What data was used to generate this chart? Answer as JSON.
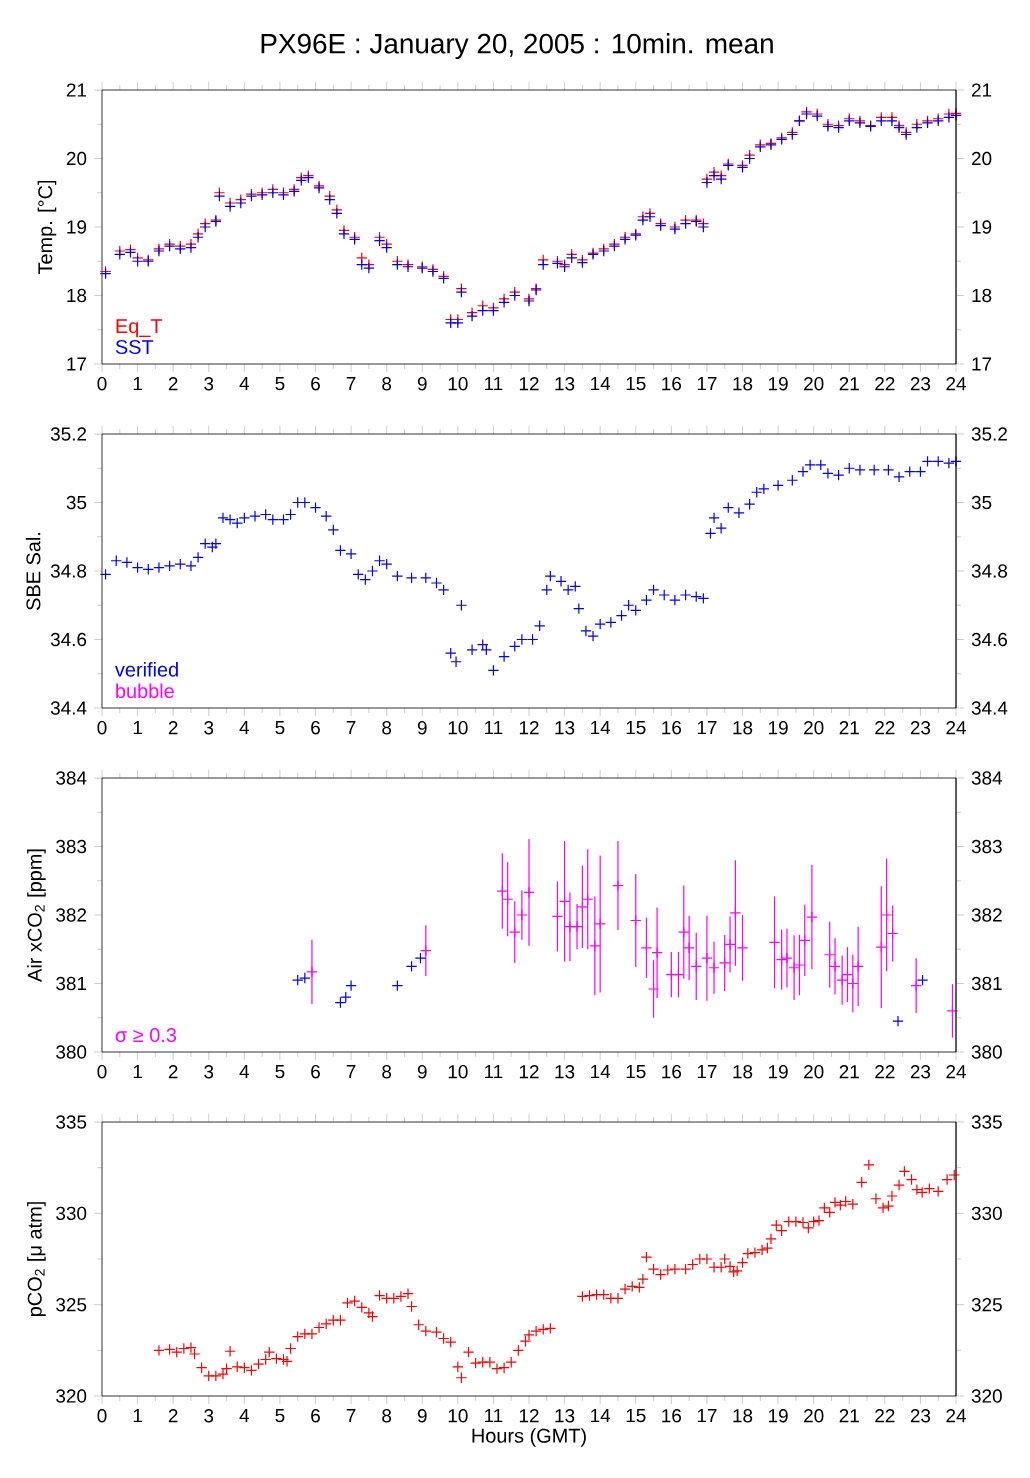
{
  "chart_data": [
    {
      "type": "scatter",
      "title": "PX96E : January 20, 2005 : 10min. mean",
      "ylabel": "Temp. [°C]",
      "marker": "cross",
      "legend": "bottom left",
      "xlim": [
        0,
        24
      ],
      "xticks": [
        0,
        1,
        2,
        3,
        4,
        5,
        6,
        7,
        8,
        9,
        10,
        11,
        12,
        13,
        14,
        15,
        16,
        17,
        18,
        19,
        20,
        21,
        22,
        23,
        24
      ],
      "ylim": [
        17,
        21
      ],
      "yticks": [
        17,
        18,
        19,
        20,
        21
      ],
      "y2lim": [
        17,
        21
      ],
      "y2ticks": [
        17,
        18,
        19,
        20,
        21
      ],
      "series": [
        {
          "name": "Eq_T",
          "color": "#ff0000",
          "x": [
            0.1,
            0.5,
            0.8,
            1.0,
            1.3,
            1.6,
            1.9,
            2.2,
            2.5,
            2.7,
            2.9,
            3.2,
            3.3,
            3.6,
            3.9,
            4.2,
            4.5,
            4.8,
            5.1,
            5.4,
            5.6,
            5.8,
            6.1,
            6.4,
            6.6,
            6.8,
            7.1,
            7.3,
            7.5,
            7.8,
            8.0,
            8.3,
            8.6,
            9.0,
            9.3,
            9.6,
            9.8,
            10.0,
            10.1,
            10.4,
            10.7,
            11.0,
            11.3,
            11.6,
            12.0,
            12.2,
            12.4,
            12.8,
            13.0,
            13.2,
            13.5,
            13.8,
            14.1,
            14.4,
            14.7,
            15.0,
            15.2,
            15.4,
            15.7,
            16.1,
            16.4,
            16.7,
            16.9,
            17.0,
            17.2,
            17.4,
            17.6,
            18.0,
            18.2,
            18.5,
            18.8,
            19.1,
            19.4,
            19.6,
            19.8,
            20.1,
            20.4,
            20.7,
            21.0,
            21.3,
            21.6,
            21.9,
            22.2,
            22.4,
            22.6,
            22.9,
            23.2,
            23.5,
            23.8,
            24.0
          ],
          "values": [
            18.35,
            18.65,
            18.67,
            18.55,
            18.52,
            18.68,
            18.75,
            18.72,
            18.75,
            18.9,
            19.05,
            19.1,
            19.5,
            19.35,
            19.4,
            19.48,
            19.5,
            19.55,
            19.5,
            19.55,
            19.72,
            19.75,
            19.6,
            19.45,
            19.25,
            18.95,
            18.85,
            18.55,
            18.45,
            18.85,
            18.75,
            18.5,
            18.45,
            18.42,
            18.38,
            18.28,
            17.65,
            17.65,
            18.1,
            17.75,
            17.85,
            17.82,
            17.95,
            18.05,
            17.95,
            18.1,
            18.52,
            18.5,
            18.45,
            18.6,
            18.52,
            18.62,
            18.68,
            18.75,
            18.85,
            18.9,
            19.15,
            19.2,
            19.05,
            19.0,
            19.1,
            19.1,
            19.05,
            19.7,
            19.8,
            19.75,
            19.92,
            19.9,
            20.05,
            20.2,
            20.22,
            20.3,
            20.38,
            20.55,
            20.68,
            20.65,
            20.5,
            20.48,
            20.58,
            20.55,
            20.48,
            20.6,
            20.6,
            20.48,
            20.38,
            20.5,
            20.55,
            20.58,
            20.65,
            20.66
          ]
        },
        {
          "name": "SST",
          "color": "#0000ff",
          "x": [
            0.1,
            0.5,
            0.8,
            1.0,
            1.3,
            1.6,
            1.9,
            2.2,
            2.5,
            2.7,
            2.9,
            3.2,
            3.3,
            3.6,
            3.9,
            4.2,
            4.5,
            4.8,
            5.1,
            5.4,
            5.6,
            5.8,
            6.1,
            6.4,
            6.6,
            6.8,
            7.1,
            7.3,
            7.5,
            7.8,
            8.0,
            8.3,
            8.6,
            9.0,
            9.3,
            9.6,
            9.8,
            10.0,
            10.1,
            10.4,
            10.7,
            11.0,
            11.3,
            11.6,
            12.0,
            12.2,
            12.4,
            12.8,
            13.0,
            13.2,
            13.5,
            13.8,
            14.1,
            14.4,
            14.7,
            15.0,
            15.2,
            15.4,
            15.7,
            16.1,
            16.4,
            16.7,
            16.9,
            17.0,
            17.2,
            17.4,
            17.6,
            18.0,
            18.2,
            18.5,
            18.8,
            19.1,
            19.4,
            19.6,
            19.8,
            20.1,
            20.4,
            20.7,
            21.0,
            21.3,
            21.6,
            21.9,
            22.2,
            22.4,
            22.6,
            22.9,
            23.2,
            23.5,
            23.8,
            24.0
          ],
          "values": [
            18.32,
            18.6,
            18.63,
            18.5,
            18.5,
            18.65,
            18.72,
            18.68,
            18.7,
            18.85,
            19.0,
            19.08,
            19.45,
            19.3,
            19.35,
            19.45,
            19.47,
            19.5,
            19.47,
            19.52,
            19.68,
            19.72,
            19.57,
            19.4,
            19.2,
            18.9,
            18.82,
            18.45,
            18.4,
            18.8,
            18.7,
            18.45,
            18.42,
            18.4,
            18.35,
            18.25,
            17.6,
            17.6,
            18.05,
            17.7,
            17.78,
            17.78,
            17.9,
            18.0,
            17.92,
            18.08,
            18.45,
            18.47,
            18.42,
            18.55,
            18.48,
            18.6,
            18.65,
            18.72,
            18.82,
            18.88,
            19.1,
            19.15,
            19.02,
            18.97,
            19.05,
            19.08,
            19.0,
            19.65,
            19.75,
            19.7,
            19.9,
            19.87,
            20.0,
            20.17,
            20.2,
            20.28,
            20.35,
            20.55,
            20.65,
            20.62,
            20.47,
            20.45,
            20.55,
            20.52,
            20.47,
            20.55,
            20.55,
            20.45,
            20.35,
            20.45,
            20.52,
            20.55,
            20.6,
            20.63
          ]
        }
      ]
    },
    {
      "type": "scatter",
      "ylabel": "SBE Sal.",
      "marker": "cross",
      "legend": "bottom left",
      "xlim": [
        0,
        24
      ],
      "xticks": [
        0,
        1,
        2,
        3,
        4,
        5,
        6,
        7,
        8,
        9,
        10,
        11,
        12,
        13,
        14,
        15,
        16,
        17,
        18,
        19,
        20,
        21,
        22,
        23,
        24
      ],
      "ylim": [
        34.4,
        35.2
      ],
      "yticks": [
        34.4,
        34.6,
        34.8,
        35,
        35.2
      ],
      "y2lim": [
        34.4,
        35.2
      ],
      "y2ticks": [
        34.4,
        34.6,
        34.8,
        35,
        35.2
      ],
      "series": [
        {
          "name": "verified",
          "color": "#0000ff",
          "x": [
            0.1,
            0.4,
            0.7,
            1.0,
            1.3,
            1.6,
            1.9,
            2.2,
            2.5,
            2.7,
            2.9,
            3.1,
            3.2,
            3.4,
            3.6,
            3.8,
            4.0,
            4.3,
            4.6,
            4.8,
            5.1,
            5.3,
            5.5,
            5.7,
            6.0,
            6.3,
            6.5,
            6.7,
            7.0,
            7.2,
            7.4,
            7.6,
            7.8,
            8.0,
            8.3,
            8.7,
            9.1,
            9.4,
            9.6,
            9.8,
            9.95,
            10.1,
            10.4,
            10.7,
            10.8,
            11.0,
            11.3,
            11.6,
            11.8,
            12.1,
            12.3,
            12.5,
            12.6,
            12.9,
            13.1,
            13.3,
            13.4,
            13.6,
            13.8,
            14.0,
            14.3,
            14.6,
            14.8,
            15.0,
            15.3,
            15.5,
            15.8,
            16.1,
            16.4,
            16.7,
            16.9,
            17.1,
            17.2,
            17.4,
            17.6,
            17.9,
            18.2,
            18.4,
            18.6,
            19.0,
            19.4,
            19.7,
            19.9,
            20.2,
            20.4,
            20.7,
            21.0,
            21.3,
            21.7,
            22.1,
            22.4,
            22.7,
            23.0,
            23.2,
            23.5,
            23.8,
            24.0
          ],
          "values": [
            34.79,
            34.83,
            34.825,
            34.81,
            34.805,
            34.81,
            34.815,
            34.82,
            34.815,
            34.84,
            34.88,
            34.87,
            34.88,
            34.955,
            34.95,
            34.94,
            34.955,
            34.96,
            34.965,
            34.95,
            34.95,
            34.965,
            35.0,
            35.0,
            34.985,
            34.96,
            34.92,
            34.86,
            34.85,
            34.79,
            34.775,
            34.8,
            34.83,
            34.82,
            34.785,
            34.78,
            34.78,
            34.765,
            34.745,
            34.56,
            34.535,
            34.7,
            34.57,
            34.585,
            34.57,
            34.51,
            34.55,
            34.58,
            34.6,
            34.6,
            34.64,
            34.745,
            34.785,
            34.77,
            34.745,
            34.755,
            34.69,
            34.625,
            34.61,
            34.645,
            34.65,
            34.67,
            34.7,
            34.685,
            34.715,
            34.745,
            34.73,
            34.715,
            34.73,
            34.725,
            34.72,
            34.91,
            34.955,
            34.925,
            34.985,
            34.97,
            34.995,
            35.03,
            35.04,
            35.05,
            35.065,
            35.09,
            35.11,
            35.11,
            35.085,
            35.08,
            35.1,
            35.095,
            35.095,
            35.095,
            35.075,
            35.09,
            35.09,
            35.12,
            35.12,
            35.115,
            35.12
          ]
        },
        {
          "name": "bubble",
          "color": "#ff00ff"
        }
      ]
    },
    {
      "type": "scatter",
      "ylabel": "Air xCO$_{2}$ [ppm]",
      "marker": "cross",
      "legend": "bottom left",
      "xlim": [
        0,
        24
      ],
      "xticks": [
        0,
        1,
        2,
        3,
        4,
        5,
        6,
        7,
        8,
        9,
        10,
        11,
        12,
        13,
        14,
        15,
        16,
        17,
        18,
        19,
        20,
        21,
        22,
        23,
        24
      ],
      "ylim": [
        380,
        384
      ],
      "yticks": [
        380,
        381,
        382,
        383,
        384
      ],
      "y2lim": [
        380,
        384
      ],
      "y2ticks": [
        380,
        381,
        382,
        383,
        384
      ],
      "series": [
        {
          "color": "#0000ff",
          "x": [
            5.5,
            5.7,
            6.7,
            6.85,
            7.0,
            8.3,
            8.7,
            8.95,
            22.37,
            23.06
          ],
          "values": [
            381.05,
            381.08,
            380.72,
            380.8,
            380.97,
            380.97,
            381.25,
            381.37,
            380.45,
            381.05
          ]
        },
        {
          "name": "σ ≥ 0.3",
          "color": "#ff00ff",
          "x": [
            5.9,
            9.1,
            11.25,
            11.4,
            11.6,
            11.8,
            12.0,
            12.8,
            13.0,
            13.15,
            13.35,
            13.5,
            13.65,
            13.85,
            14.0,
            14.5,
            15.0,
            15.3,
            15.5,
            15.6,
            16.0,
            16.2,
            16.35,
            16.5,
            16.7,
            17.0,
            17.2,
            17.5,
            17.65,
            17.8,
            18.0,
            18.9,
            19.1,
            19.25,
            19.45,
            19.6,
            19.75,
            19.95,
            20.45,
            20.6,
            20.8,
            20.95,
            21.1,
            21.25,
            21.9,
            22.05,
            22.22,
            22.88,
            23.9
          ],
          "values": [
            381.17,
            381.48,
            382.35,
            382.23,
            381.75,
            382.0,
            382.33,
            381.98,
            382.2,
            381.83,
            381.83,
            382.12,
            382.23,
            381.55,
            381.87,
            382.43,
            381.92,
            381.52,
            380.92,
            381.45,
            381.13,
            381.13,
            381.75,
            381.52,
            381.25,
            381.37,
            381.23,
            381.3,
            381.57,
            382.03,
            381.52,
            381.6,
            381.35,
            381.37,
            381.23,
            381.27,
            381.63,
            381.97,
            381.42,
            381.25,
            381.05,
            381.13,
            381.0,
            381.25,
            381.53,
            382.0,
            381.73,
            380.97,
            380.6
          ],
          "errors": [
            0.47,
            0.37,
            0.55,
            0.54,
            0.45,
            0.36,
            0.78,
            0.51,
            0.88,
            0.5,
            0.33,
            0.6,
            0.73,
            0.72,
            1.0,
            0.65,
            0.68,
            0.44,
            0.42,
            0.66,
            0.33,
            0.33,
            0.68,
            0.47,
            0.49,
            0.62,
            0.38,
            0.41,
            0.41,
            0.77,
            0.48,
            0.67,
            0.44,
            0.43,
            0.47,
            0.44,
            0.52,
            0.76,
            0.48,
            0.41,
            0.36,
            0.4,
            0.42,
            0.58,
            0.89,
            0.82,
            0.41,
            0.4,
            0.39
          ]
        }
      ]
    },
    {
      "type": "scatter",
      "ylabel": "pCO$_{2}$ [μ atm]",
      "xlabel": "Hours (GMT)",
      "marker": "cross",
      "xlim": [
        0,
        24
      ],
      "xticks": [
        0,
        1,
        2,
        3,
        4,
        5,
        6,
        7,
        8,
        9,
        10,
        11,
        12,
        13,
        14,
        15,
        16,
        17,
        18,
        19,
        20,
        21,
        22,
        23,
        24
      ],
      "ylim": [
        320,
        335
      ],
      "yticks": [
        320,
        325,
        330,
        335
      ],
      "y2lim": [
        320,
        335
      ],
      "y2ticks": [
        320,
        325,
        330,
        335
      ],
      "series": [
        {
          "color": "#ff0000",
          "x": [
            1.6,
            1.9,
            2.1,
            2.3,
            2.5,
            2.6,
            2.8,
            3.0,
            3.2,
            3.4,
            3.5,
            3.6,
            3.8,
            4.0,
            4.2,
            4.4,
            4.6,
            4.7,
            4.9,
            5.1,
            5.2,
            5.3,
            5.5,
            5.7,
            5.9,
            6.1,
            6.3,
            6.5,
            6.7,
            6.9,
            7.1,
            7.3,
            7.5,
            7.6,
            7.8,
            8.0,
            8.2,
            8.4,
            8.6,
            8.7,
            8.9,
            9.1,
            9.4,
            9.6,
            9.8,
            10.0,
            10.1,
            10.3,
            10.5,
            10.7,
            10.9,
            11.1,
            11.3,
            11.5,
            11.7,
            11.9,
            12.0,
            12.2,
            12.4,
            12.6,
            13.5,
            13.7,
            13.9,
            14.1,
            14.3,
            14.5,
            14.7,
            14.9,
            15.1,
            15.2,
            15.3,
            15.5,
            15.7,
            15.9,
            16.1,
            16.4,
            16.6,
            16.8,
            17.0,
            17.2,
            17.4,
            17.5,
            17.65,
            17.75,
            17.85,
            18.0,
            18.15,
            18.35,
            18.55,
            18.7,
            18.8,
            18.95,
            19.1,
            19.3,
            19.5,
            19.7,
            19.85,
            20.0,
            20.15,
            20.3,
            20.45,
            20.6,
            20.75,
            20.9,
            21.1,
            21.35,
            21.55,
            21.75,
            21.95,
            22.1,
            22.2,
            22.4,
            22.55,
            22.75,
            22.9,
            23.05,
            23.25,
            23.5,
            23.75,
            23.95
          ],
          "values": [
            322.5,
            322.55,
            322.4,
            322.6,
            322.65,
            322.3,
            321.55,
            321.1,
            321.1,
            321.2,
            321.5,
            322.45,
            321.6,
            321.55,
            321.4,
            321.75,
            322.0,
            322.4,
            322.05,
            322.0,
            321.9,
            322.6,
            323.25,
            323.4,
            323.4,
            323.75,
            323.95,
            324.15,
            324.15,
            325.1,
            325.2,
            324.85,
            324.55,
            324.35,
            325.5,
            325.35,
            325.35,
            325.45,
            325.6,
            324.9,
            323.9,
            323.55,
            323.5,
            323.15,
            322.95,
            321.6,
            321.0,
            322.4,
            321.8,
            321.85,
            321.85,
            321.5,
            321.55,
            321.85,
            322.5,
            323.0,
            323.35,
            323.55,
            323.65,
            323.7,
            325.45,
            325.5,
            325.55,
            325.55,
            325.35,
            325.35,
            325.85,
            326.0,
            325.95,
            326.4,
            327.6,
            326.95,
            326.65,
            326.9,
            326.95,
            326.95,
            327.2,
            327.5,
            327.5,
            327.05,
            327.05,
            327.5,
            327.1,
            326.8,
            326.85,
            327.3,
            327.8,
            327.85,
            328.0,
            328.1,
            328.6,
            329.35,
            329.05,
            329.55,
            329.55,
            329.5,
            329.2,
            329.55,
            329.6,
            330.3,
            330.05,
            330.6,
            330.45,
            330.65,
            330.5,
            331.7,
            332.65,
            330.8,
            330.3,
            330.4,
            330.95,
            331.55,
            332.3,
            331.85,
            331.3,
            331.15,
            331.35,
            331.2,
            331.85,
            332.1
          ]
        }
      ]
    }
  ]
}
